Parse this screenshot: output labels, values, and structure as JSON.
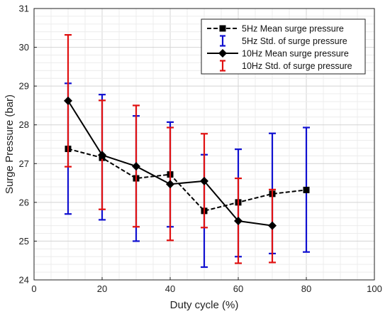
{
  "chart_data": {
    "type": "line",
    "xlabel": "Duty cycle (%)",
    "ylabel": "Surge Pressure (bar)",
    "xlim": [
      0,
      100
    ],
    "ylim": [
      24,
      31
    ],
    "xticks": [
      "0",
      "20",
      "40",
      "60",
      "80",
      "100"
    ],
    "yticks": [
      "24",
      "25",
      "26",
      "27",
      "28",
      "29",
      "30",
      "31"
    ],
    "grid": "major and minor",
    "legend_position": "top-right",
    "series": [
      {
        "name": "5Hz Mean surge pressure",
        "std_name": "5Hz Std. of surge pressure",
        "line_color": "#000000",
        "line_style": "dashed",
        "marker": "square",
        "errorbar_color": "#1010d0",
        "x": [
          10,
          20,
          30,
          40,
          50,
          60,
          70,
          80
        ],
        "y": [
          27.38,
          27.15,
          26.62,
          26.72,
          25.78,
          26.0,
          26.22,
          26.32
        ],
        "err_low": [
          25.7,
          25.55,
          25.0,
          25.37,
          24.33,
          24.6,
          24.68,
          24.72
        ],
        "err_high": [
          29.07,
          28.78,
          28.23,
          28.07,
          27.23,
          27.37,
          27.78,
          27.93
        ]
      },
      {
        "name": "10Hz Mean surge pressure",
        "std_name": "10Hz Std. of surge pressure",
        "line_color": "#000000",
        "line_style": "solid",
        "marker": "diamond",
        "errorbar_color": "#e01010",
        "x": [
          10,
          20,
          30,
          40,
          50,
          60,
          70
        ],
        "y": [
          28.62,
          27.22,
          26.93,
          26.47,
          26.55,
          25.52,
          25.4
        ],
        "err_low": [
          26.92,
          25.82,
          25.37,
          25.02,
          25.35,
          24.43,
          24.45
        ],
        "err_high": [
          30.32,
          28.63,
          28.5,
          27.93,
          27.77,
          26.62,
          26.33
        ]
      }
    ]
  }
}
